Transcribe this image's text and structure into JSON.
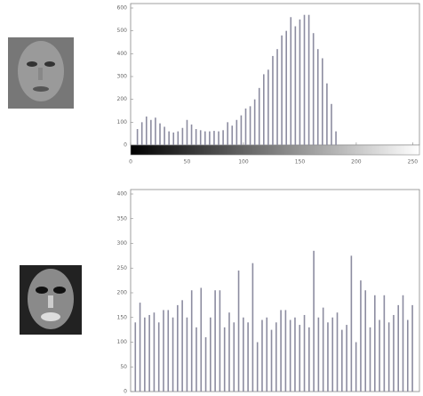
{
  "chart_data": [
    {
      "type": "bar",
      "x": [
        6,
        10,
        14,
        18,
        22,
        26,
        30,
        34,
        38,
        42,
        46,
        50,
        54,
        58,
        62,
        66,
        70,
        74,
        78,
        82,
        86,
        90,
        94,
        98,
        102,
        106,
        110,
        114,
        118,
        122,
        126,
        130,
        134,
        138,
        142,
        146,
        150,
        154,
        158,
        162,
        166,
        170,
        174,
        178,
        182
      ],
      "values": [
        70,
        100,
        125,
        110,
        120,
        95,
        80,
        60,
        55,
        60,
        75,
        110,
        90,
        70,
        65,
        60,
        60,
        62,
        60,
        65,
        100,
        85,
        110,
        130,
        160,
        170,
        200,
        250,
        310,
        330,
        390,
        420,
        480,
        500,
        560,
        520,
        550,
        570,
        570,
        490,
        420,
        380,
        270,
        180,
        60
      ],
      "color": "#8c8ca0",
      "xlim": [
        0,
        256
      ],
      "xticks": [
        0,
        50,
        100,
        150,
        200,
        250
      ],
      "ylim": [
        0,
        600
      ],
      "yticks": [
        0,
        100,
        200,
        300,
        400,
        500,
        600
      ],
      "colorbar": true
    },
    {
      "type": "bar",
      "x": [
        1,
        2,
        3,
        4,
        5,
        6,
        7,
        8,
        9,
        10,
        11,
        12,
        13,
        14,
        15,
        16,
        17,
        18,
        19,
        20,
        21,
        22,
        23,
        24,
        25,
        26,
        27,
        28,
        29,
        30,
        31,
        32,
        33,
        34,
        35,
        36,
        37,
        38,
        39,
        40,
        41,
        42,
        43,
        44,
        45,
        46,
        47,
        48,
        49,
        50,
        51,
        52,
        53,
        54,
        55,
        56,
        57,
        58,
        59,
        60
      ],
      "values": [
        140,
        180,
        150,
        155,
        160,
        140,
        165,
        165,
        150,
        175,
        185,
        150,
        205,
        130,
        210,
        110,
        150,
        205,
        205,
        130,
        160,
        140,
        245,
        150,
        140,
        260,
        100,
        145,
        150,
        125,
        140,
        165,
        165,
        145,
        150,
        135,
        155,
        130,
        285,
        150,
        170,
        140,
        150,
        160,
        125,
        135,
        275,
        100,
        225,
        205,
        130,
        195,
        145,
        195,
        140,
        155,
        175,
        195,
        145,
        175
      ],
      "color": "#8c8ca0",
      "xlim": [
        0,
        61.5
      ],
      "ylim": [
        0,
        400
      ],
      "yticks": [
        0,
        50,
        100,
        150,
        200,
        250,
        300,
        350,
        400
      ]
    }
  ]
}
